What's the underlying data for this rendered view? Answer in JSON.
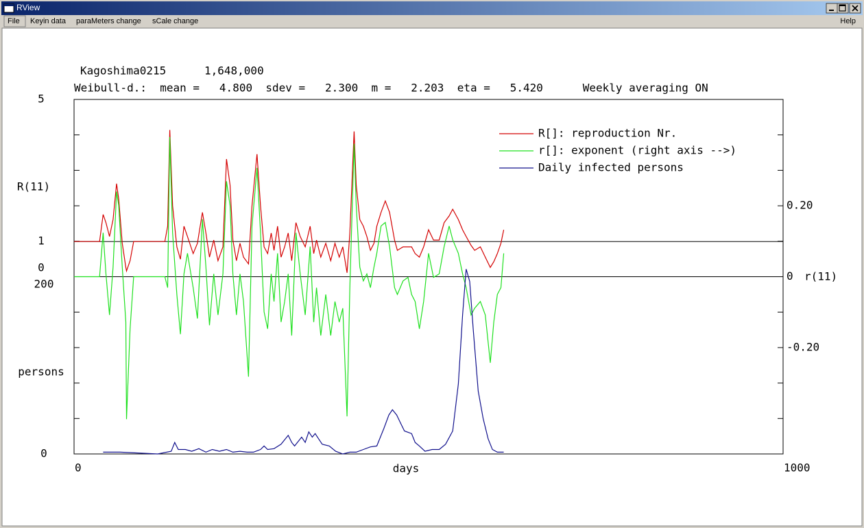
{
  "window": {
    "title": "RView",
    "menu": [
      "File",
      "Keyin data",
      "paraMeters change",
      "sCale change"
    ],
    "help": "Help"
  },
  "chart_data": {
    "type": "line",
    "title": "Kagoshima0215",
    "title_note": "1,648,000",
    "subtitle": "Weibull-d.:  mean =   4.800  sdev =   2.300  m =   2.203  eta =   5.420      Weekly averaging ON",
    "xlabel": "days",
    "ylabel": "R(11)",
    "y2label": "r(11)",
    "y3label": "persons",
    "xlim": [
      0,
      1000
    ],
    "xticks": [
      0,
      1000
    ],
    "ylim": [
      0,
      5
    ],
    "yticks": [
      0,
      1,
      5
    ],
    "y2lim": [
      -0.5,
      0.5
    ],
    "y2ticks": [
      {
        "value": -0.2,
        "label": "-0.20"
      },
      0,
      {
        "value": 0.2,
        "label": "0.20"
      }
    ],
    "y2minorticks": [
      -0.5,
      -0.4,
      -0.3,
      -0.2,
      -0.1,
      0,
      0.1,
      0.2,
      0.3,
      0.4,
      0.5
    ],
    "y3lim": [
      0,
      200
    ],
    "y3ticks": [
      0,
      200
    ],
    "reference_lines": [
      {
        "axis": "y",
        "value": 1,
        "color": "#000000"
      },
      {
        "axis": "y2",
        "value": 0,
        "color": "#000000"
      }
    ],
    "legend": "upper right",
    "series": [
      {
        "name": "R[]: reproduction Nr.",
        "color": "#d40000",
        "axis": "y",
        "x": [
          0,
          36,
          41,
          45,
          50,
          55,
          60,
          63,
          68,
          73,
          74,
          79,
          84,
          128,
          132,
          135,
          139,
          145,
          150,
          155,
          160,
          168,
          174,
          181,
          186,
          191,
          197,
          203,
          210,
          215,
          220,
          224,
          229,
          234,
          239,
          246,
          251,
          258,
          263,
          268,
          273,
          278,
          282,
          287,
          292,
          297,
          302,
          307,
          313,
          319,
          326,
          333,
          338,
          342,
          348,
          355,
          362,
          368,
          374,
          379,
          385,
          389,
          395,
          398,
          403,
          408,
          413,
          418,
          423,
          427,
          433,
          439,
          445,
          452,
          456,
          464,
          471,
          476,
          481,
          487,
          493,
          500,
          507,
          515,
          522,
          529,
          534,
          542,
          548,
          553,
          560,
          565,
          573,
          580,
          587,
          592,
          597,
          602,
          606
        ],
        "values": [
          1.0,
          1.0,
          1.76,
          1.53,
          1.14,
          1.62,
          2.63,
          2.2,
          0.95,
          0.27,
          0.17,
          0.46,
          1.0,
          1.0,
          1.43,
          4.14,
          2.01,
          0.85,
          0.5,
          1.43,
          1.14,
          0.66,
          0.95,
          1.82,
          1.24,
          0.56,
          1.04,
          0.46,
          0.85,
          3.32,
          2.59,
          1.04,
          0.46,
          0.95,
          0.56,
          0.37,
          2.01,
          3.46,
          2.01,
          0.85,
          0.66,
          1.24,
          0.75,
          1.43,
          0.56,
          0.85,
          1.24,
          0.46,
          1.53,
          1.14,
          0.85,
          1.43,
          0.66,
          1.04,
          0.56,
          0.95,
          0.46,
          0.95,
          0.56,
          0.85,
          0.12,
          1.24,
          4.1,
          2.59,
          1.62,
          1.43,
          1.14,
          0.75,
          0.95,
          1.43,
          1.82,
          2.14,
          1.82,
          1.04,
          0.75,
          0.85,
          0.85,
          0.85,
          0.66,
          0.56,
          0.85,
          1.33,
          1.04,
          1.04,
          1.53,
          1.72,
          1.91,
          1.62,
          1.33,
          1.14,
          0.89,
          0.75,
          0.85,
          0.56,
          0.27,
          0.43,
          0.66,
          0.95,
          1.33
        ]
      },
      {
        "name": "r[]: exponent (right axis -->)",
        "color": "#1ee01e",
        "axis": "y2",
        "x": [
          0,
          36,
          41,
          45,
          50,
          55,
          60,
          63,
          68,
          73,
          74,
          79,
          84,
          128,
          132,
          135,
          139,
          145,
          150,
          155,
          160,
          168,
          174,
          181,
          186,
          191,
          197,
          203,
          210,
          215,
          220,
          224,
          229,
          234,
          239,
          246,
          251,
          258,
          263,
          268,
          273,
          278,
          282,
          287,
          292,
          297,
          302,
          307,
          313,
          319,
          326,
          333,
          338,
          342,
          348,
          355,
          362,
          368,
          374,
          379,
          385,
          389,
          395,
          398,
          403,
          408,
          413,
          418,
          423,
          427,
          433,
          439,
          445,
          452,
          456,
          464,
          471,
          476,
          481,
          487,
          493,
          500,
          507,
          515,
          522,
          529,
          534,
          542,
          548,
          553,
          560,
          565,
          573,
          580,
          587,
          592,
          597,
          602,
          606
        ],
        "values": [
          0,
          0,
          0.124,
          0.008,
          -0.108,
          0.027,
          0.24,
          0.201,
          0.027,
          -0.128,
          -0.402,
          -0.147,
          0,
          0,
          -0.031,
          0.394,
          0.124,
          -0.05,
          -0.162,
          0.008,
          0.066,
          -0.031,
          -0.118,
          0.162,
          0.027,
          -0.137,
          0.008,
          -0.108,
          0.008,
          0.269,
          0.201,
          0.008,
          -0.108,
          0.008,
          -0.07,
          -0.282,
          0.143,
          0.307,
          0.124,
          -0.099,
          -0.147,
          0.008,
          -0.07,
          0.066,
          -0.128,
          -0.07,
          0.008,
          -0.166,
          0.124,
          0.008,
          -0.108,
          0.085,
          -0.128,
          -0.031,
          -0.166,
          -0.05,
          -0.166,
          -0.07,
          -0.128,
          -0.089,
          -0.394,
          -0.031,
          0.375,
          0.201,
          0.027,
          -0.012,
          0.008,
          -0.031,
          0.027,
          0.066,
          0.143,
          0.153,
          0.085,
          -0.031,
          -0.05,
          -0.012,
          -0.002,
          -0.05,
          -0.07,
          -0.147,
          -0.07,
          0.066,
          -0.002,
          0.008,
          0.085,
          0.143,
          0.104,
          0.066,
          0.008,
          -0.031,
          -0.108,
          -0.089,
          -0.07,
          -0.108,
          -0.243,
          -0.128,
          -0.05,
          -0.031,
          0.066
        ]
      },
      {
        "name": "Daily infected persons",
        "color": "#10108c",
        "axis": "y3",
        "x": [
          41,
          65,
          118,
          137,
          142,
          147,
          157,
          166,
          176,
          186,
          195,
          205,
          215,
          224,
          234,
          244,
          253,
          263,
          268,
          273,
          282,
          292,
          302,
          307,
          311,
          321,
          326,
          331,
          336,
          340,
          345,
          350,
          360,
          369,
          379,
          389,
          398,
          408,
          418,
          427,
          437,
          444,
          449,
          455,
          461,
          466,
          476,
          481,
          487,
          495,
          505,
          515,
          524,
          534,
          542,
          548,
          553,
          558,
          563,
          570,
          577,
          584,
          590,
          597,
          606
        ],
        "values": [
          2,
          2,
          0,
          3,
          13,
          5,
          5,
          3,
          6,
          2,
          5,
          3,
          5,
          2,
          3,
          2,
          2,
          5,
          9,
          5,
          6,
          11,
          21,
          13,
          9,
          19,
          13,
          25,
          19,
          23,
          17,
          11,
          9,
          3,
          0,
          2,
          2,
          5,
          8,
          9,
          29,
          44,
          50,
          44,
          34,
          26,
          23,
          13,
          9,
          3,
          5,
          5,
          11,
          26,
          79,
          157,
          209,
          195,
          141,
          71,
          40,
          17,
          5,
          2,
          2
        ]
      }
    ]
  }
}
